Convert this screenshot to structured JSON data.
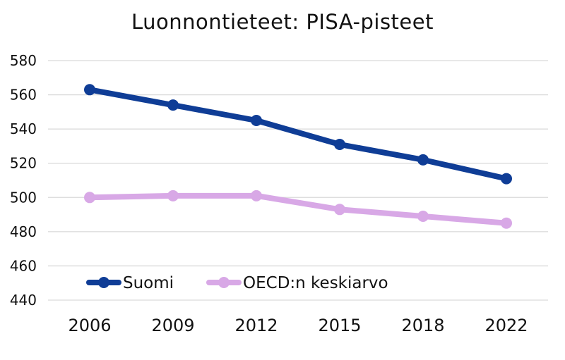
{
  "chart_data": {
    "type": "line",
    "title": "Luonnontieteet: PISA-pisteet",
    "xlabel": "",
    "ylabel": "",
    "categories": [
      "2006",
      "2009",
      "2012",
      "2015",
      "2018",
      "2022"
    ],
    "ylim": [
      440,
      580
    ],
    "yticks": [
      440,
      460,
      480,
      500,
      520,
      540,
      560,
      580
    ],
    "grid": true,
    "legend_position": "bottom-left",
    "series": [
      {
        "name": "Suomi",
        "color": "#0f3d96",
        "values": [
          563,
          554,
          545,
          531,
          522,
          511
        ]
      },
      {
        "name": "OECD:n keskiarvo",
        "color": "#d8a8e6",
        "values": [
          500,
          501,
          501,
          493,
          489,
          485
        ]
      }
    ]
  }
}
